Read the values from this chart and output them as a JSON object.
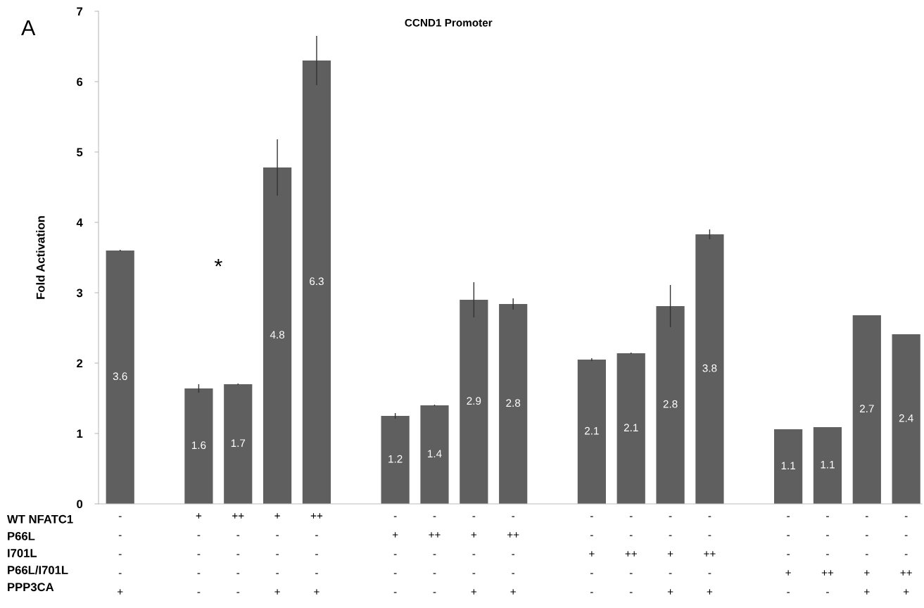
{
  "chart_data": {
    "type": "bar",
    "title": "CCND1 Promoter",
    "ylabel": "Fold Activation",
    "annotations": [
      "A",
      "*",
      "WT NFATC1",
      "P66L",
      "I701L",
      "P66L/I701L",
      "PPP3CA"
    ],
    "categories": [
      "-\n-\n-\n-\n+",
      null,
      "+\n-\n-\n-\n-",
      "++\n-\n-\n-\n-",
      "+\n-\n-\n-\n+",
      "++\n-\n-\n-\n+",
      null,
      "-\n+\n-\n-\n-",
      "-\n++\n-\n-\n-",
      "-\n+\n-\n-\n+",
      "-\n++\n-\n-\n+",
      null,
      "-\n-\n+\n-\n-",
      "-\n-\n++\n-\n-",
      "-\n-\n+\n-\n+",
      "-\n-\n++\n-\n+",
      null,
      "-\n-\n-\n+\n-",
      "-\n-\n-\n++\n-",
      "-\n-\n-\n+\n+",
      "-\n-\n-\n++\n+"
    ],
    "values": [
      3.6,
      null,
      1.64,
      1.7,
      4.78,
      6.3,
      null,
      1.25,
      1.4,
      2.9,
      2.84,
      null,
      2.05,
      2.14,
      2.81,
      3.83,
      null,
      1.06,
      1.09,
      2.68,
      2.41
    ],
    "errors": [
      0.01,
      null,
      0.06,
      0.01,
      0.4,
      0.35,
      null,
      0.04,
      0.01,
      0.25,
      0.08,
      null,
      0.02,
      0.01,
      0.3,
      0.07,
      null,
      null,
      null,
      null,
      null
    ],
    "value_labels": [
      "3.6",
      null,
      "1.6",
      "1.7",
      "4.8",
      "6.3",
      null,
      "1.2",
      "1.4",
      "2.9",
      "2.8",
      null,
      "2.1",
      "2.1",
      "2.8",
      "3.8",
      null,
      "1.1",
      "1.1",
      "2.7",
      "2.4"
    ],
    "color": "#5f5f5f",
    "ylim": [
      0,
      7
    ],
    "yticks": [
      0,
      1,
      2,
      3,
      4,
      5,
      6,
      7
    ],
    "grid": false,
    "legend": false
  }
}
